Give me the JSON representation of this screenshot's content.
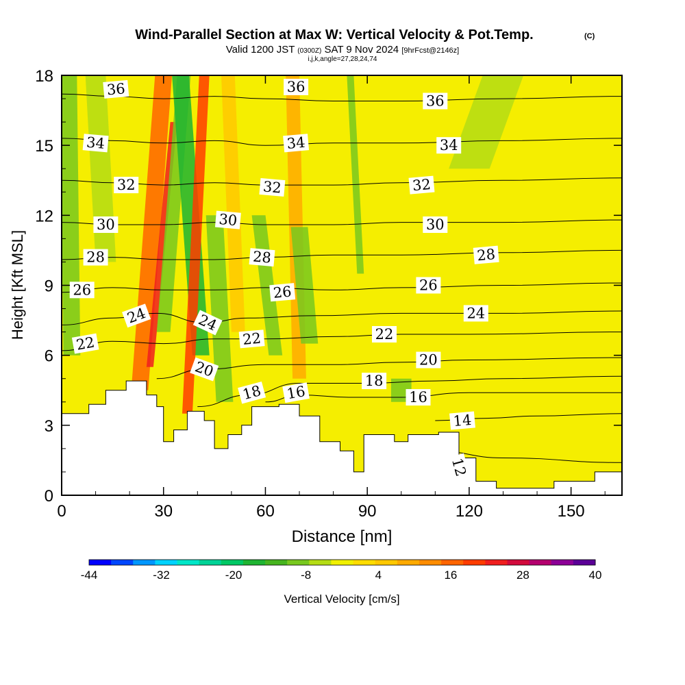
{
  "chart_data": {
    "type": "heatmap",
    "title": "Wind-Parallel Section at Max W: Vertical Velocity & Pot.Temp.",
    "title_units": "(C)",
    "subtitle": {
      "valid": "Valid 1200 JST",
      "utc": "(0300Z)",
      "date": "SAT 9 Nov 2024",
      "forecast": "[9hrFcst@2146z]"
    },
    "indices_label": "i,j,k,angle=27,28,24,74",
    "xlabel": "Distance [nm]",
    "ylabel": "Height [Kft MSL]",
    "xlim": [
      0,
      165
    ],
    "ylim": [
      0,
      18
    ],
    "x_ticks": [
      0,
      30,
      60,
      90,
      120,
      150
    ],
    "y_ticks": [
      0,
      3,
      6,
      9,
      12,
      15,
      18
    ],
    "grid": false,
    "colorbar": {
      "label": "Vertical Velocity [cm/s]",
      "tick_labels": [
        "-44",
        "-32",
        "-20",
        "-8",
        "4",
        "16",
        "28",
        "40"
      ],
      "tick_values": [
        -44,
        -32,
        -20,
        -8,
        4,
        16,
        28,
        40
      ],
      "range": [
        -44,
        40
      ],
      "colors": [
        "#0000ff",
        "#0046ff",
        "#0096ff",
        "#00d2ff",
        "#00e6c8",
        "#00d296",
        "#00c864",
        "#1eb432",
        "#46b41e",
        "#78c81e",
        "#b4dc14",
        "#f0f000",
        "#ffdc00",
        "#ffc800",
        "#ffaa00",
        "#ff8c00",
        "#ff6400",
        "#ff3c00",
        "#f01e1e",
        "#d20a3c",
        "#b4006e",
        "#8c0096",
        "#5a0096"
      ]
    },
    "terrain": [
      [
        0,
        3.5
      ],
      [
        8,
        3.9
      ],
      [
        13,
        4.5
      ],
      [
        19,
        4.9
      ],
      [
        25,
        4.3
      ],
      [
        28,
        3.8
      ],
      [
        30,
        2.3
      ],
      [
        33,
        2.8
      ],
      [
        37,
        3.6
      ],
      [
        42,
        3.2
      ],
      [
        45,
        2.0
      ],
      [
        49,
        2.6
      ],
      [
        53,
        3.0
      ],
      [
        56,
        3.8
      ],
      [
        64,
        3.9
      ],
      [
        70,
        3.4
      ],
      [
        76,
        2.3
      ],
      [
        82,
        1.9
      ],
      [
        86,
        1.0
      ],
      [
        89,
        2.6
      ],
      [
        95,
        2.6
      ],
      [
        98,
        2.3
      ],
      [
        102,
        2.6
      ],
      [
        111,
        2.7
      ],
      [
        117,
        1.6
      ],
      [
        122,
        0.6
      ],
      [
        128,
        0.3
      ],
      [
        139,
        0.3
      ],
      [
        145,
        0.6
      ],
      [
        157,
        1.0
      ],
      [
        165,
        1.0
      ]
    ],
    "potential_temperature_contours": [
      {
        "value": 12,
        "label": "12",
        "points": [
          [
            110,
            1.9
          ],
          [
            130,
            1.6
          ],
          [
            165,
            1.4
          ]
        ]
      },
      {
        "value": 14,
        "label": "14",
        "points": [
          [
            110,
            3.2
          ],
          [
            125,
            3.3
          ],
          [
            140,
            3.4
          ],
          [
            165,
            3.5
          ]
        ]
      },
      {
        "value": 16,
        "label": "16",
        "points": [
          [
            60,
            4.0
          ],
          [
            70,
            4.3
          ],
          [
            85,
            4.2
          ],
          [
            100,
            4.2
          ],
          [
            120,
            4.4
          ],
          [
            165,
            4.4
          ]
        ]
      },
      {
        "value": 18,
        "label": "18",
        "points": [
          [
            40,
            3.8
          ],
          [
            55,
            4.3
          ],
          [
            70,
            4.8
          ],
          [
            90,
            4.8
          ],
          [
            110,
            4.9
          ],
          [
            130,
            5.0
          ],
          [
            165,
            5.1
          ]
        ]
      },
      {
        "value": 20,
        "label": "20",
        "points": [
          [
            28,
            5.0
          ],
          [
            42,
            5.4
          ],
          [
            60,
            5.6
          ],
          [
            80,
            5.6
          ],
          [
            100,
            5.7
          ],
          [
            120,
            5.8
          ],
          [
            165,
            5.9
          ]
        ]
      },
      {
        "value": 22,
        "label": "22",
        "points": [
          [
            0,
            6.2
          ],
          [
            15,
            6.6
          ],
          [
            30,
            6.5
          ],
          [
            45,
            6.7
          ],
          [
            60,
            6.7
          ],
          [
            80,
            6.8
          ],
          [
            100,
            6.9
          ],
          [
            120,
            6.9
          ],
          [
            165,
            7.0
          ]
        ]
      },
      {
        "value": 24,
        "label": "24",
        "points": [
          [
            0,
            7.3
          ],
          [
            15,
            7.6
          ],
          [
            28,
            7.8
          ],
          [
            42,
            7.4
          ],
          [
            55,
            7.6
          ],
          [
            75,
            7.7
          ],
          [
            100,
            7.8
          ],
          [
            130,
            7.8
          ],
          [
            165,
            7.9
          ]
        ]
      },
      {
        "value": 26,
        "label": "26",
        "points": [
          [
            0,
            8.7
          ],
          [
            15,
            8.9
          ],
          [
            30,
            8.8
          ],
          [
            45,
            8.8
          ],
          [
            60,
            8.9
          ],
          [
            80,
            8.8
          ],
          [
            100,
            8.9
          ],
          [
            130,
            9.0
          ],
          [
            165,
            9.1
          ]
        ]
      },
      {
        "value": 28,
        "label": "28",
        "points": [
          [
            0,
            10.1
          ],
          [
            15,
            10.2
          ],
          [
            30,
            10.1
          ],
          [
            45,
            10.1
          ],
          [
            60,
            10.2
          ],
          [
            80,
            10.3
          ],
          [
            100,
            10.3
          ],
          [
            130,
            10.4
          ],
          [
            165,
            10.5
          ]
        ]
      },
      {
        "value": 30,
        "label": "30",
        "points": [
          [
            0,
            11.7
          ],
          [
            15,
            11.6
          ],
          [
            30,
            11.6
          ],
          [
            45,
            11.7
          ],
          [
            60,
            11.6
          ],
          [
            80,
            11.6
          ],
          [
            100,
            11.7
          ],
          [
            130,
            11.7
          ],
          [
            165,
            11.8
          ]
        ]
      },
      {
        "value": 32,
        "label": "32",
        "points": [
          [
            0,
            13.5
          ],
          [
            15,
            13.4
          ],
          [
            30,
            13.3
          ],
          [
            45,
            13.4
          ],
          [
            60,
            13.3
          ],
          [
            80,
            13.3
          ],
          [
            100,
            13.4
          ],
          [
            130,
            13.5
          ],
          [
            165,
            13.6
          ]
        ]
      },
      {
        "value": 34,
        "label": "34",
        "points": [
          [
            0,
            15.3
          ],
          [
            15,
            15.2
          ],
          [
            30,
            15.1
          ],
          [
            45,
            15.2
          ],
          [
            60,
            15.0
          ],
          [
            80,
            15.1
          ],
          [
            100,
            15.1
          ],
          [
            130,
            15.2
          ],
          [
            165,
            15.3
          ]
        ]
      },
      {
        "value": 36,
        "label": "36",
        "points": [
          [
            0,
            17.2
          ],
          [
            15,
            17.1
          ],
          [
            30,
            17.0
          ],
          [
            45,
            17.1
          ],
          [
            60,
            17.0
          ],
          [
            80,
            16.9
          ],
          [
            100,
            16.9
          ],
          [
            130,
            17.0
          ],
          [
            165,
            17.1
          ]
        ]
      }
    ],
    "contour_labels": [
      {
        "text": "36",
        "x": 16,
        "y": 17.4,
        "angle": -5
      },
      {
        "text": "36",
        "x": 69,
        "y": 17.5,
        "angle": 0
      },
      {
        "text": "36",
        "x": 110,
        "y": 16.9,
        "angle": 0
      },
      {
        "text": "34",
        "x": 10,
        "y": 15.1,
        "angle": 5
      },
      {
        "text": "34",
        "x": 69,
        "y": 15.1,
        "angle": -5
      },
      {
        "text": "34",
        "x": 114,
        "y": 15.0,
        "angle": 0
      },
      {
        "text": "32",
        "x": 19,
        "y": 13.3,
        "angle": 0
      },
      {
        "text": "32",
        "x": 62,
        "y": 13.2,
        "angle": 5
      },
      {
        "text": "32",
        "x": 106,
        "y": 13.3,
        "angle": -5
      },
      {
        "text": "30",
        "x": 13,
        "y": 11.6,
        "angle": 0
      },
      {
        "text": "30",
        "x": 49,
        "y": 11.8,
        "angle": 5
      },
      {
        "text": "30",
        "x": 110,
        "y": 11.6,
        "angle": 0
      },
      {
        "text": "28",
        "x": 10,
        "y": 10.2,
        "angle": 0
      },
      {
        "text": "28",
        "x": 59,
        "y": 10.2,
        "angle": 5
      },
      {
        "text": "28",
        "x": 125,
        "y": 10.3,
        "angle": -5
      },
      {
        "text": "26",
        "x": 6,
        "y": 8.8,
        "angle": 0
      },
      {
        "text": "26",
        "x": 65,
        "y": 8.7,
        "angle": -5
      },
      {
        "text": "26",
        "x": 108,
        "y": 9.0,
        "angle": 0
      },
      {
        "text": "24",
        "x": 22,
        "y": 7.7,
        "angle": -20
      },
      {
        "text": "24",
        "x": 43,
        "y": 7.4,
        "angle": 25
      },
      {
        "text": "24",
        "x": 122,
        "y": 7.8,
        "angle": 0
      },
      {
        "text": "22",
        "x": 7,
        "y": 6.5,
        "angle": -10
      },
      {
        "text": "22",
        "x": 56,
        "y": 6.7,
        "angle": -5
      },
      {
        "text": "22",
        "x": 95,
        "y": 6.9,
        "angle": 0
      },
      {
        "text": "20",
        "x": 42,
        "y": 5.4,
        "angle": 20
      },
      {
        "text": "20",
        "x": 108,
        "y": 5.8,
        "angle": 0
      },
      {
        "text": "18",
        "x": 56,
        "y": 4.4,
        "angle": -15
      },
      {
        "text": "18",
        "x": 92,
        "y": 4.9,
        "angle": 0
      },
      {
        "text": "16",
        "x": 69,
        "y": 4.4,
        "angle": -10
      },
      {
        "text": "16",
        "x": 105,
        "y": 4.2,
        "angle": 0
      },
      {
        "text": "14",
        "x": 118,
        "y": 3.2,
        "angle": -5
      },
      {
        "text": "12",
        "x": 117,
        "y": 1.2,
        "angle": 75
      }
    ],
    "vertical_velocity_features": [
      {
        "x": 3,
        "x_top": 2,
        "width": 5,
        "z_bottom": 6.0,
        "z_top": 18,
        "w": -10
      },
      {
        "x": 13,
        "x_top": 10,
        "width": 6,
        "z_bottom": 10.0,
        "z_top": 18,
        "w": -4
      },
      {
        "x": 23,
        "x_top": 30,
        "width": 5,
        "z_bottom": 4.5,
        "z_top": 18,
        "w": 16
      },
      {
        "x": 26,
        "x_top": 33,
        "width": 2,
        "z_bottom": 5.5,
        "z_top": 16,
        "w": 24
      },
      {
        "x": 30,
        "x_top": 36,
        "width": 4,
        "z_bottom": 7.0,
        "z_top": 18,
        "w": -8
      },
      {
        "x": 41,
        "x_top": 35,
        "width": 5,
        "z_bottom": 6.0,
        "z_top": 18,
        "w": -16
      },
      {
        "x": 37,
        "x_top": 42,
        "width": 3,
        "z_bottom": 3.5,
        "z_top": 18,
        "w": 20
      },
      {
        "x": 48,
        "x_top": 45,
        "width": 5,
        "z_bottom": 4.0,
        "z_top": 12,
        "w": -8
      },
      {
        "x": 52,
        "x_top": 49,
        "width": 4,
        "z_bottom": 7.0,
        "z_top": 18,
        "w": 4
      },
      {
        "x": 63,
        "x_top": 58,
        "width": 4,
        "z_bottom": 6.0,
        "z_top": 12,
        "w": -8
      },
      {
        "x": 70,
        "x_top": 68,
        "width": 4,
        "z_bottom": 5.0,
        "z_top": 18,
        "w": 8
      },
      {
        "x": 73,
        "x_top": 70,
        "width": 5,
        "z_bottom": 6.5,
        "z_top": 11.5,
        "w": -8
      },
      {
        "x": 88,
        "x_top": 85,
        "width": 2,
        "z_bottom": 9.5,
        "z_top": 18,
        "w": -8
      },
      {
        "x": 100,
        "x_top": 100,
        "width": 6,
        "z_bottom": 4.0,
        "z_top": 5.0,
        "w": -8
      },
      {
        "x": 120,
        "x_top": 130,
        "width": 12,
        "z_bottom": 14.0,
        "z_top": 18,
        "w": -4
      }
    ]
  }
}
